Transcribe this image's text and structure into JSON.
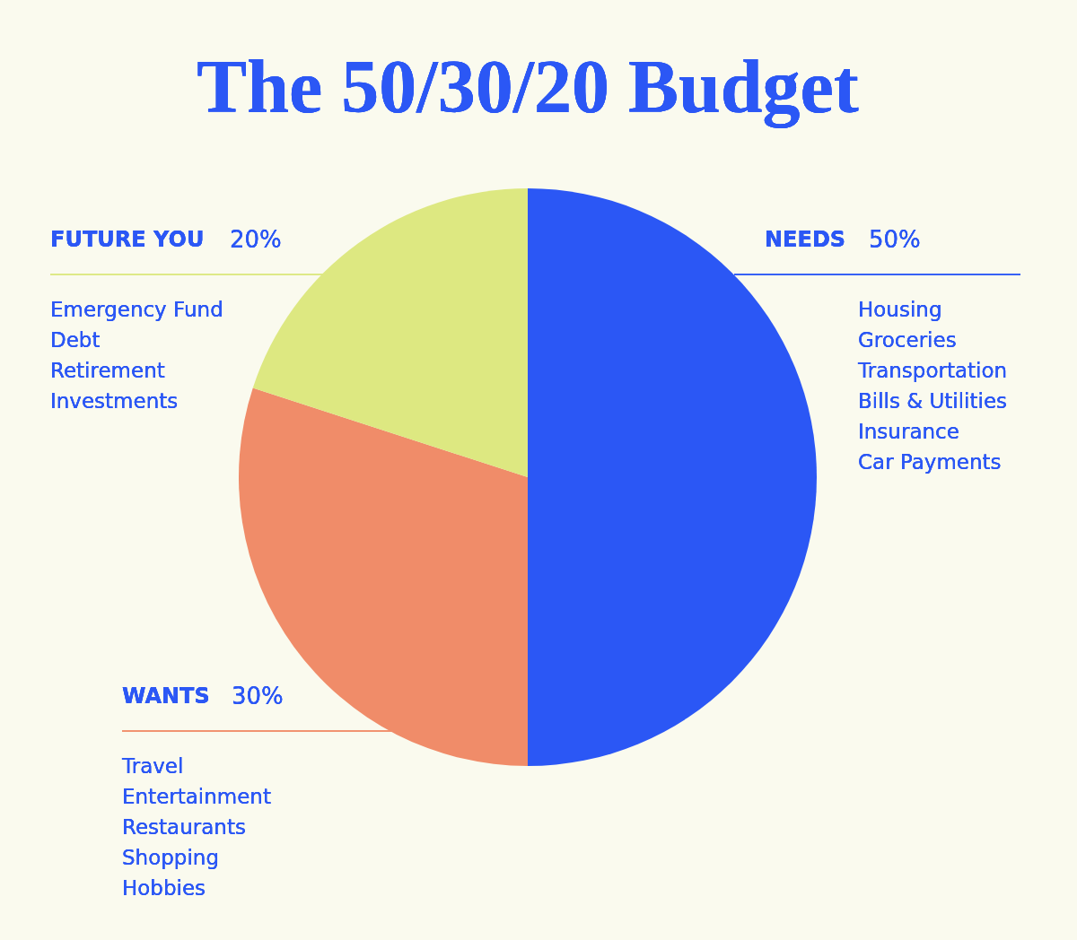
{
  "chart_data": {
    "type": "pie",
    "title": "The 50/30/20 Budget",
    "categories": [
      "NEEDS",
      "WANTS",
      "FUTURE YOU"
    ],
    "values": [
      50,
      30,
      20
    ],
    "value_labels": [
      "50%",
      "30%",
      "20%"
    ],
    "colors": [
      "#2b57f5",
      "#f08c69",
      "#dde881"
    ],
    "annotations": [
      "Housing\nGroceries\nTransportation\nBills & Utilities\nInsurance\nCar Payments",
      "Travel\nEntertainment\nRestaurants\nShopping\nHobbies",
      "Emergency Fund\nDebt\nRetirement\nInvestments"
    ]
  }
}
